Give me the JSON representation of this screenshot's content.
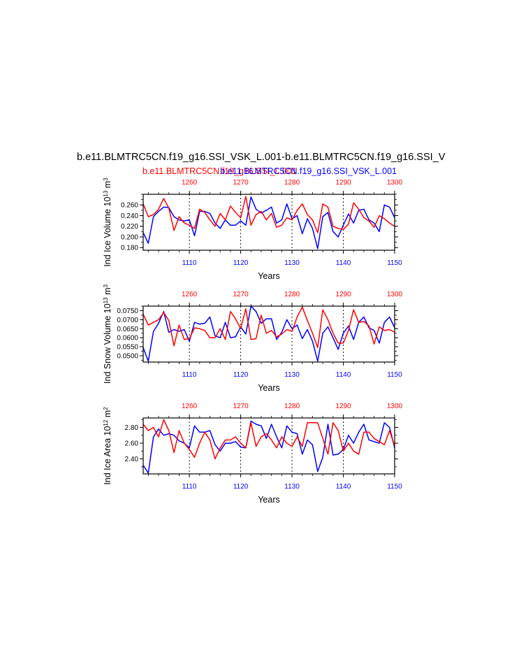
{
  "title": "b.e11.BLMTRC5CN.f19_g16.SSI_VSK_L.001-b.e11.BLMTRC5CN.f19_g16.SSI_V",
  "subtitle_red": "b.e11.BLMTRC5CN.f19_g16.SSI_L.001",
  "subtitle_blue": "b.e11.BLMTRC5CN.f19_g16.SSI_VSK_L.001",
  "colors": {
    "red": "#ff0000",
    "blue": "#0000ff",
    "axis": "#000000"
  },
  "chart_data": [
    {
      "type": "line",
      "ylabel": "Ind Ice Volume 10^13 m^3",
      "xlabel": "Years",
      "ylim": [
        0.175,
        0.28
      ],
      "yticks": [
        "0.180",
        "0.200",
        "0.220",
        "0.240",
        "0.260"
      ],
      "xlim_bottom": [
        1101,
        1150
      ],
      "xticks_bottom": [
        "1110",
        "1120",
        "1130",
        "1140",
        "1150"
      ],
      "xlim_top": [
        1251,
        1300
      ],
      "xticks_top": [
        "1260",
        "1270",
        "1280",
        "1290",
        "1300"
      ],
      "grid_verticals": [
        1110,
        1120,
        1130,
        1140
      ],
      "series": [
        {
          "name": "b.e11.BLMTRC5CN.f19_g16.SSI_VSK_L.001",
          "color": "#0000ff",
          "x_axis": "bottom",
          "values": [
            0.208,
            0.188,
            0.238,
            0.248,
            0.256,
            0.255,
            0.238,
            0.232,
            0.23,
            0.232,
            0.202,
            0.248,
            0.248,
            0.244,
            0.226,
            0.216,
            0.232,
            0.222,
            0.222,
            0.23,
            0.222,
            0.275,
            0.252,
            0.245,
            0.25,
            0.256,
            0.226,
            0.232,
            0.262,
            0.234,
            0.24,
            0.206,
            0.234,
            0.216,
            0.178,
            0.238,
            0.246,
            0.21,
            0.2,
            0.222,
            0.243,
            0.226,
            0.25,
            0.252,
            0.232,
            0.226,
            0.21,
            0.26,
            0.256,
            0.236
          ]
        },
        {
          "name": "b.e11.BLMTRC5CN.f19_g16.SSI_L.001",
          "color": "#ff0000",
          "x_axis": "top",
          "values": [
            0.262,
            0.238,
            0.242,
            0.252,
            0.272,
            0.254,
            0.212,
            0.238,
            0.226,
            0.222,
            0.216,
            0.252,
            0.246,
            0.232,
            0.22,
            0.244,
            0.232,
            0.258,
            0.246,
            0.236,
            0.276,
            0.222,
            0.242,
            0.248,
            0.232,
            0.244,
            0.218,
            0.222,
            0.236,
            0.232,
            0.25,
            0.262,
            0.242,
            0.232,
            0.208,
            0.262,
            0.256,
            0.22,
            0.216,
            0.214,
            0.224,
            0.264,
            0.252,
            0.236,
            0.23,
            0.218,
            0.24,
            0.234,
            0.226,
            0.22
          ]
        }
      ]
    },
    {
      "type": "line",
      "ylabel": "Ind Snow Volume 10^13 m^3",
      "xlabel": "Years",
      "ylim": [
        0.0465,
        0.0775
      ],
      "yticks": [
        "0.0500",
        "0.0550",
        "0.0600",
        "0.0650",
        "0.0700",
        "0.0750"
      ],
      "xlim_bottom": [
        1101,
        1150
      ],
      "xticks_bottom": [
        "1110",
        "1120",
        "1130",
        "1140",
        "1150"
      ],
      "xlim_top": [
        1251,
        1300
      ],
      "xticks_top": [
        "1260",
        "1270",
        "1280",
        "1290",
        "1300"
      ],
      "grid_verticals": [
        1110,
        1120,
        1130,
        1140
      ],
      "series": [
        {
          "name": "b.e11.BLMTRC5CN.f19_g16.SSI_VSK_L.001",
          "color": "#0000ff",
          "x_axis": "bottom",
          "values": [
            0.0545,
            0.047,
            0.0635,
            0.068,
            0.0745,
            0.063,
            0.0645,
            0.0635,
            0.0645,
            0.058,
            0.0685,
            0.0675,
            0.068,
            0.0715,
            0.061,
            0.06,
            0.0685,
            0.06,
            0.0605,
            0.066,
            0.062,
            0.0775,
            0.0745,
            0.068,
            0.0705,
            0.0705,
            0.059,
            0.063,
            0.07,
            0.065,
            0.067,
            0.0595,
            0.0645,
            0.058,
            0.047,
            0.0625,
            0.066,
            0.06,
            0.0535,
            0.0625,
            0.0665,
            0.059,
            0.0685,
            0.0715,
            0.0655,
            0.064,
            0.057,
            0.0685,
            0.0715,
            0.0655
          ]
        },
        {
          "name": "b.e11.BLMTRC5CN.f19_g16.SSI_L.001",
          "color": "#ff0000",
          "x_axis": "top",
          "values": [
            0.073,
            0.067,
            0.0685,
            0.07,
            0.074,
            0.0695,
            0.0555,
            0.067,
            0.059,
            0.0595,
            0.0655,
            0.065,
            0.064,
            0.06,
            0.06,
            0.065,
            0.059,
            0.0745,
            0.0705,
            0.065,
            0.076,
            0.059,
            0.0595,
            0.0725,
            0.0625,
            0.064,
            0.0605,
            0.062,
            0.0645,
            0.0635,
            0.0715,
            0.077,
            0.0695,
            0.0625,
            0.0545,
            0.0755,
            0.07,
            0.0625,
            0.057,
            0.057,
            0.064,
            0.0755,
            0.0685,
            0.069,
            0.0665,
            0.0565,
            0.066,
            0.064,
            0.0645,
            0.063
          ]
        }
      ]
    },
    {
      "type": "line",
      "ylabel": "Ind Ice Area 10^12 m^2",
      "xlabel": "Years",
      "ylim": [
        2.21,
        2.92
      ],
      "yticks": [
        "2.40",
        "2.60",
        "2.80"
      ],
      "xlim_bottom": [
        1101,
        1150
      ],
      "xticks_bottom": [
        "1110",
        "1120",
        "1130",
        "1140",
        "1150"
      ],
      "xlim_top": [
        1251,
        1300
      ],
      "xticks_top": [
        "1260",
        "1270",
        "1280",
        "1290",
        "1300"
      ],
      "grid_verticals": [
        1110,
        1120,
        1130,
        1140
      ],
      "series": [
        {
          "name": "b.e11.BLMTRC5CN.f19_g16.SSI_VSK_L.001",
          "color": "#0000ff",
          "x_axis": "bottom",
          "values": [
            2.32,
            2.22,
            2.68,
            2.78,
            2.7,
            2.72,
            2.7,
            2.63,
            2.6,
            2.54,
            2.82,
            2.74,
            2.74,
            2.76,
            2.58,
            2.5,
            2.6,
            2.6,
            2.62,
            2.55,
            2.54,
            2.88,
            2.84,
            2.82,
            2.66,
            2.84,
            2.68,
            2.54,
            2.82,
            2.74,
            2.72,
            2.46,
            2.64,
            2.58,
            2.24,
            2.42,
            2.84,
            2.45,
            2.46,
            2.52,
            2.7,
            2.6,
            2.74,
            2.84,
            2.64,
            2.62,
            2.6,
            2.86,
            2.8,
            2.54
          ]
        },
        {
          "name": "b.e11.BLMTRC5CN.f19_g16.SSI_L.001",
          "color": "#ff0000",
          "x_axis": "top",
          "values": [
            2.84,
            2.76,
            2.8,
            2.68,
            2.9,
            2.76,
            2.48,
            2.76,
            2.6,
            2.52,
            2.42,
            2.6,
            2.74,
            2.64,
            2.4,
            2.54,
            2.64,
            2.64,
            2.68,
            2.6,
            2.54,
            2.86,
            2.56,
            2.68,
            2.72,
            2.64,
            2.54,
            2.68,
            2.6,
            2.56,
            2.68,
            2.56,
            2.86,
            2.86,
            2.86,
            2.66,
            2.46,
            2.86,
            2.76,
            2.5,
            2.6,
            2.5,
            2.46,
            2.74,
            2.74,
            2.66,
            2.62,
            2.58,
            2.76,
            2.56
          ]
        }
      ]
    }
  ]
}
